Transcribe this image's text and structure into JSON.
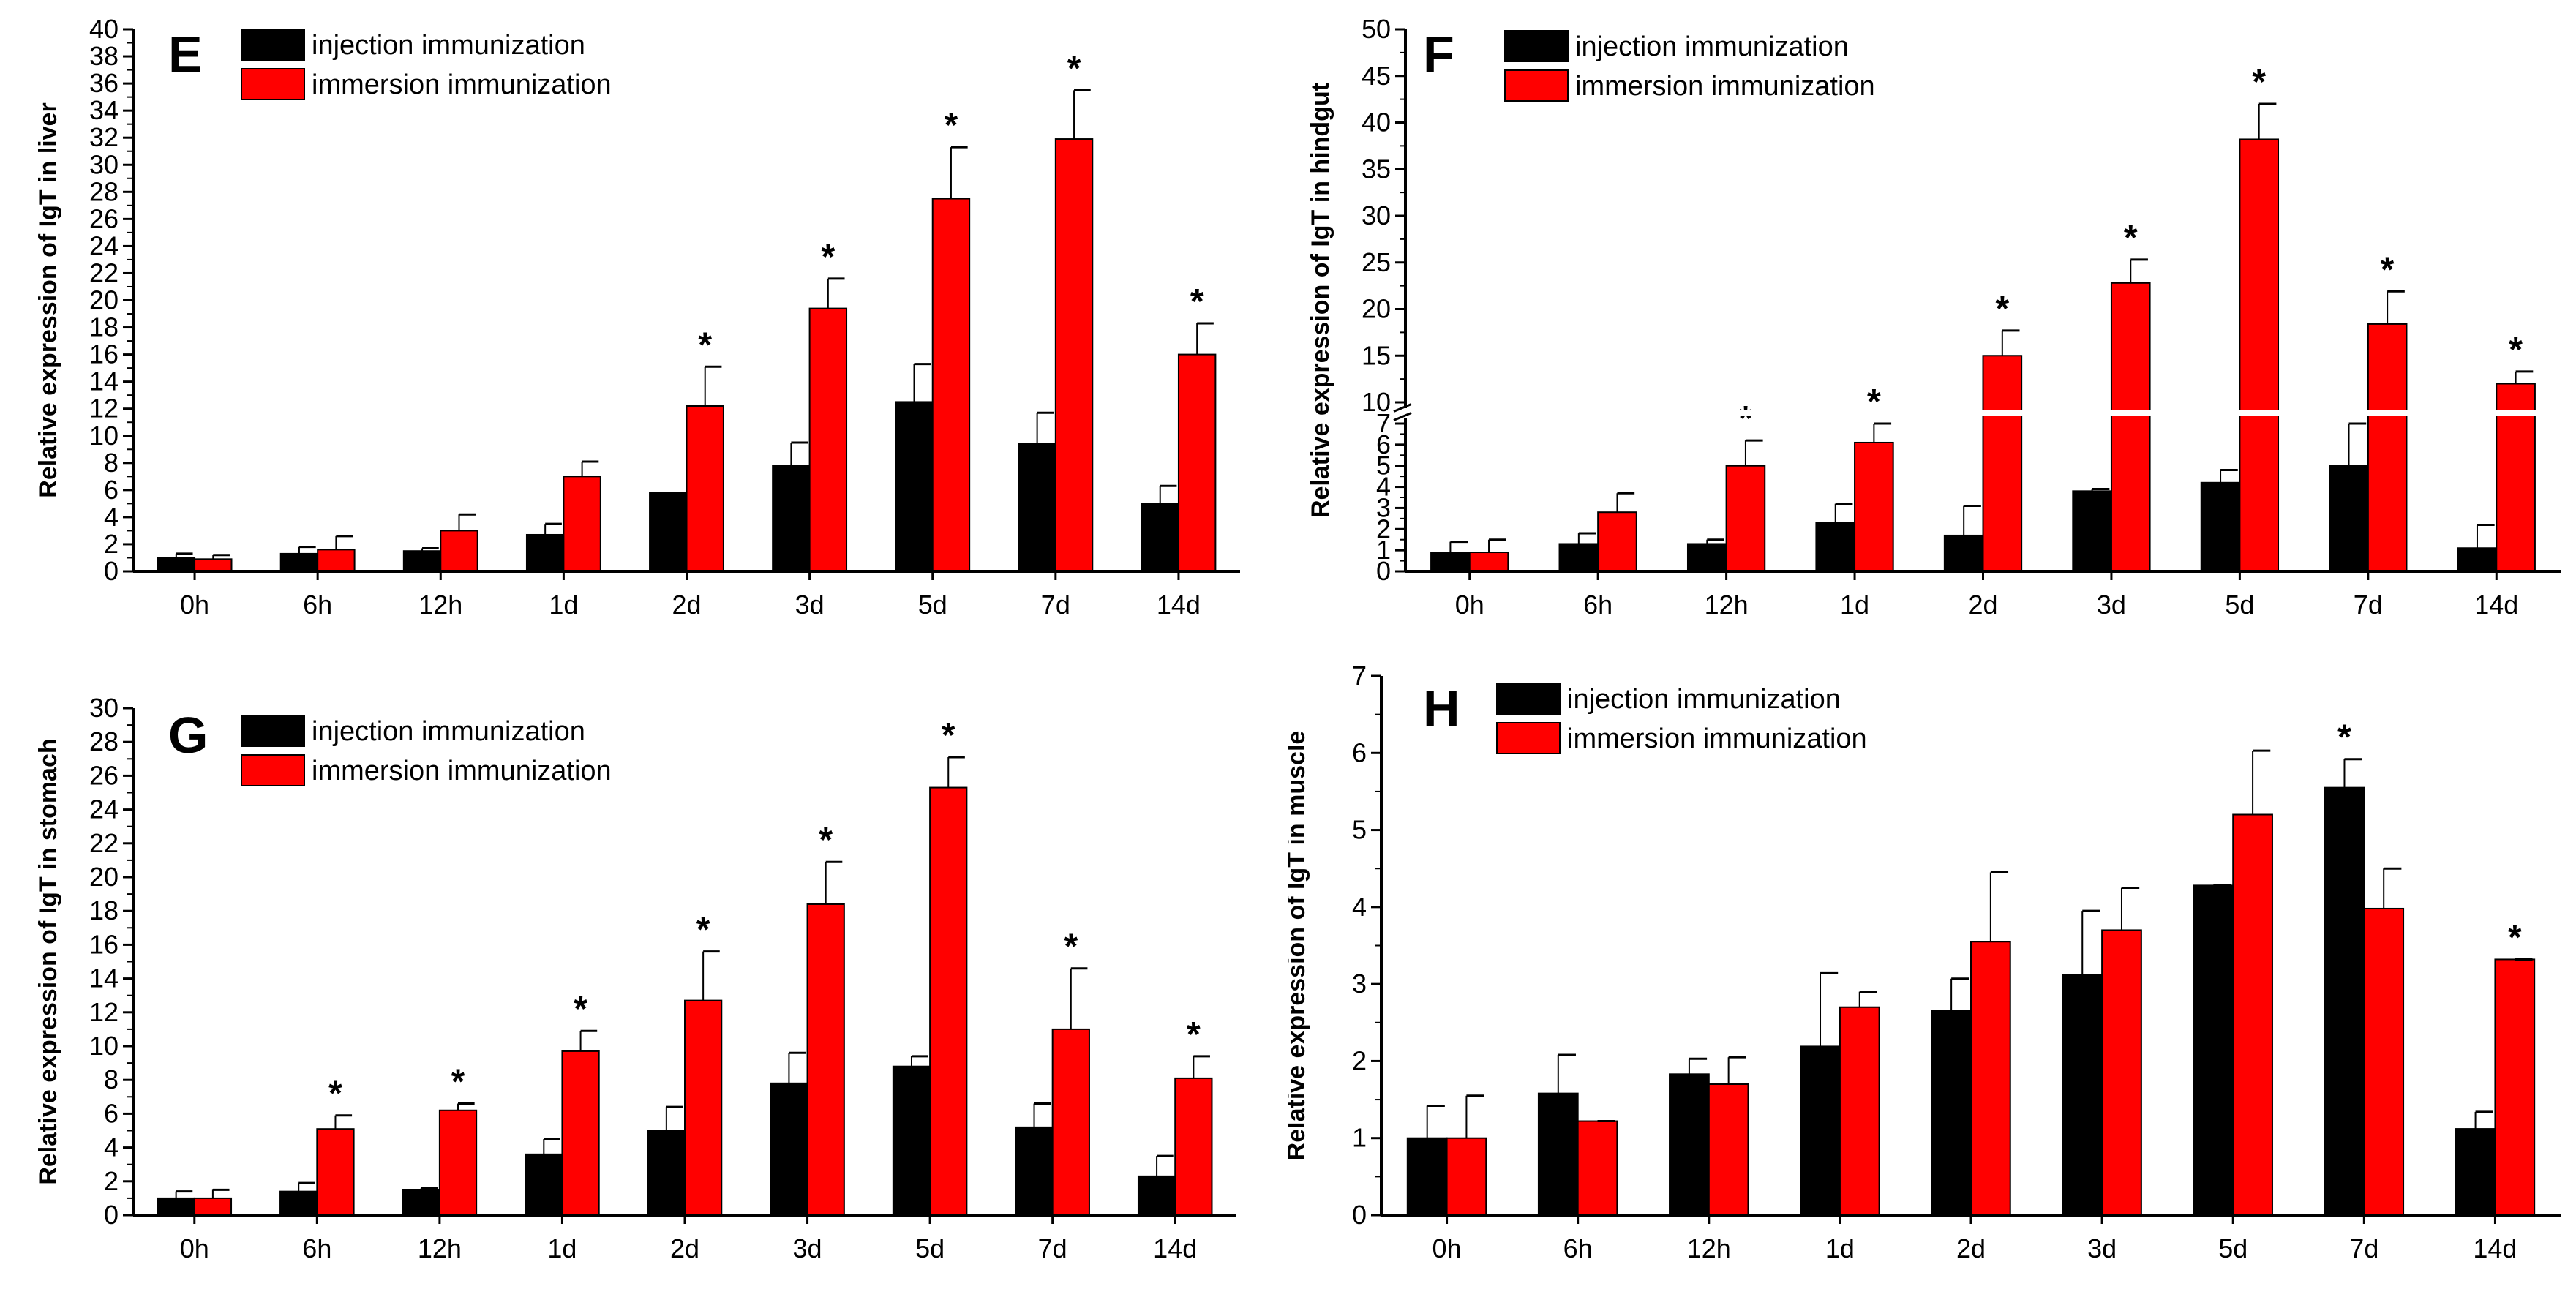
{
  "colors": {
    "injection": "#000000",
    "immersion": "#ff0000"
  },
  "chart_data": [
    {
      "type": "bar",
      "panel": "E",
      "ylabel": "Relative expression of IgT in liver",
      "categories": [
        "0h",
        "6h",
        "12h",
        "1d",
        "2d",
        "3d",
        "5d",
        "7d",
        "14d"
      ],
      "ylim": [
        0,
        40
      ],
      "ytick_step": 2,
      "legend": "top-left",
      "series": [
        {
          "name": "injection immunization",
          "values": [
            1.0,
            1.3,
            1.5,
            2.7,
            5.8,
            7.8,
            12.5,
            9.4,
            5.0
          ],
          "errors": [
            0.3,
            0.5,
            0.2,
            0.8,
            0,
            1.7,
            2.8,
            2.3,
            1.3
          ],
          "significant": [
            false,
            false,
            false,
            false,
            false,
            false,
            false,
            false,
            false
          ]
        },
        {
          "name": "immersion immunization",
          "values": [
            0.9,
            1.6,
            3.0,
            7.0,
            12.2,
            19.4,
            27.5,
            31.9,
            16.0
          ],
          "errors": [
            0.3,
            1.0,
            1.2,
            1.1,
            2.9,
            2.2,
            3.8,
            3.6,
            2.3
          ],
          "significant": [
            false,
            false,
            false,
            false,
            true,
            true,
            true,
            true,
            true
          ]
        }
      ]
    },
    {
      "type": "bar",
      "panel": "F",
      "ylabel": "Relative expression of IgT in hindgut",
      "categories": [
        "0h",
        "6h",
        "12h",
        "1d",
        "2d",
        "3d",
        "5d",
        "7d",
        "14d"
      ],
      "ylim": [
        0,
        50
      ],
      "axis_break": [
        7,
        10
      ],
      "ytick_lower": [
        0,
        1,
        2,
        3,
        4,
        5,
        6,
        7
      ],
      "ytick_upper": [
        10,
        15,
        20,
        25,
        30,
        35,
        40,
        45,
        50
      ],
      "legend": "top-left",
      "series": [
        {
          "name": "injection immunization",
          "values": [
            0.9,
            1.3,
            1.3,
            2.3,
            1.7,
            3.8,
            4.2,
            5.0,
            1.1
          ],
          "errors": [
            0.5,
            0.5,
            0.2,
            0.9,
            1.4,
            0.1,
            0.6,
            2.3,
            1.1
          ],
          "significant": [
            false,
            false,
            false,
            false,
            false,
            false,
            false,
            false,
            false
          ]
        },
        {
          "name": "immersion immunization",
          "values": [
            0.9,
            2.8,
            5.0,
            6.1,
            15.0,
            22.8,
            38.2,
            18.4,
            12.0
          ],
          "errors": [
            0.6,
            0.9,
            1.2,
            1.2,
            2.7,
            2.5,
            3.8,
            3.5,
            1.3
          ],
          "significant": [
            false,
            false,
            true,
            true,
            true,
            true,
            true,
            true,
            true
          ]
        }
      ]
    },
    {
      "type": "bar",
      "panel": "G",
      "ylabel": "Relative expression of IgT in stomach",
      "categories": [
        "0h",
        "6h",
        "12h",
        "1d",
        "2d",
        "3d",
        "5d",
        "7d",
        "14d"
      ],
      "ylim": [
        0,
        30
      ],
      "ytick_step": 2,
      "legend": "top-left",
      "series": [
        {
          "name": "injection immunization",
          "values": [
            1.0,
            1.4,
            1.5,
            3.6,
            5.0,
            7.8,
            8.8,
            5.2,
            2.3
          ],
          "errors": [
            0.4,
            0.5,
            0.1,
            0.9,
            1.4,
            1.8,
            0.6,
            1.4,
            1.2
          ],
          "significant": [
            false,
            false,
            false,
            false,
            false,
            false,
            false,
            false,
            false
          ]
        },
        {
          "name": "immersion immunization",
          "values": [
            1.0,
            5.1,
            6.2,
            9.7,
            12.7,
            18.4,
            25.3,
            11.0,
            8.1
          ],
          "errors": [
            0.5,
            0.8,
            0.4,
            1.2,
            2.9,
            2.5,
            1.8,
            3.6,
            1.3
          ],
          "significant": [
            false,
            true,
            true,
            true,
            true,
            true,
            true,
            true,
            true
          ]
        }
      ]
    },
    {
      "type": "bar",
      "panel": "H",
      "ylabel": "Relative expression of IgT in muscle",
      "categories": [
        "0h",
        "6h",
        "12h",
        "1d",
        "2d",
        "3d",
        "5d",
        "7d",
        "14d"
      ],
      "ylim": [
        0,
        7
      ],
      "ytick_step": 1,
      "legend": "top-left",
      "series": [
        {
          "name": "injection immunization",
          "values": [
            1.0,
            1.58,
            1.83,
            2.19,
            2.65,
            3.12,
            4.28,
            5.55,
            1.12
          ],
          "errors": [
            0.42,
            0.5,
            0.2,
            0.95,
            0.42,
            0.83,
            0,
            0.37,
            0.22
          ],
          "significant": [
            false,
            false,
            false,
            false,
            false,
            false,
            false,
            true,
            false
          ]
        },
        {
          "name": "immersion immunization",
          "values": [
            1.0,
            1.22,
            1.7,
            2.7,
            3.55,
            3.7,
            5.2,
            3.98,
            3.32
          ],
          "errors": [
            0.55,
            0,
            0.35,
            0.2,
            0.9,
            0.55,
            0.83,
            0.52,
            0
          ],
          "significant": [
            false,
            false,
            false,
            false,
            false,
            false,
            false,
            false,
            true
          ]
        }
      ]
    }
  ]
}
